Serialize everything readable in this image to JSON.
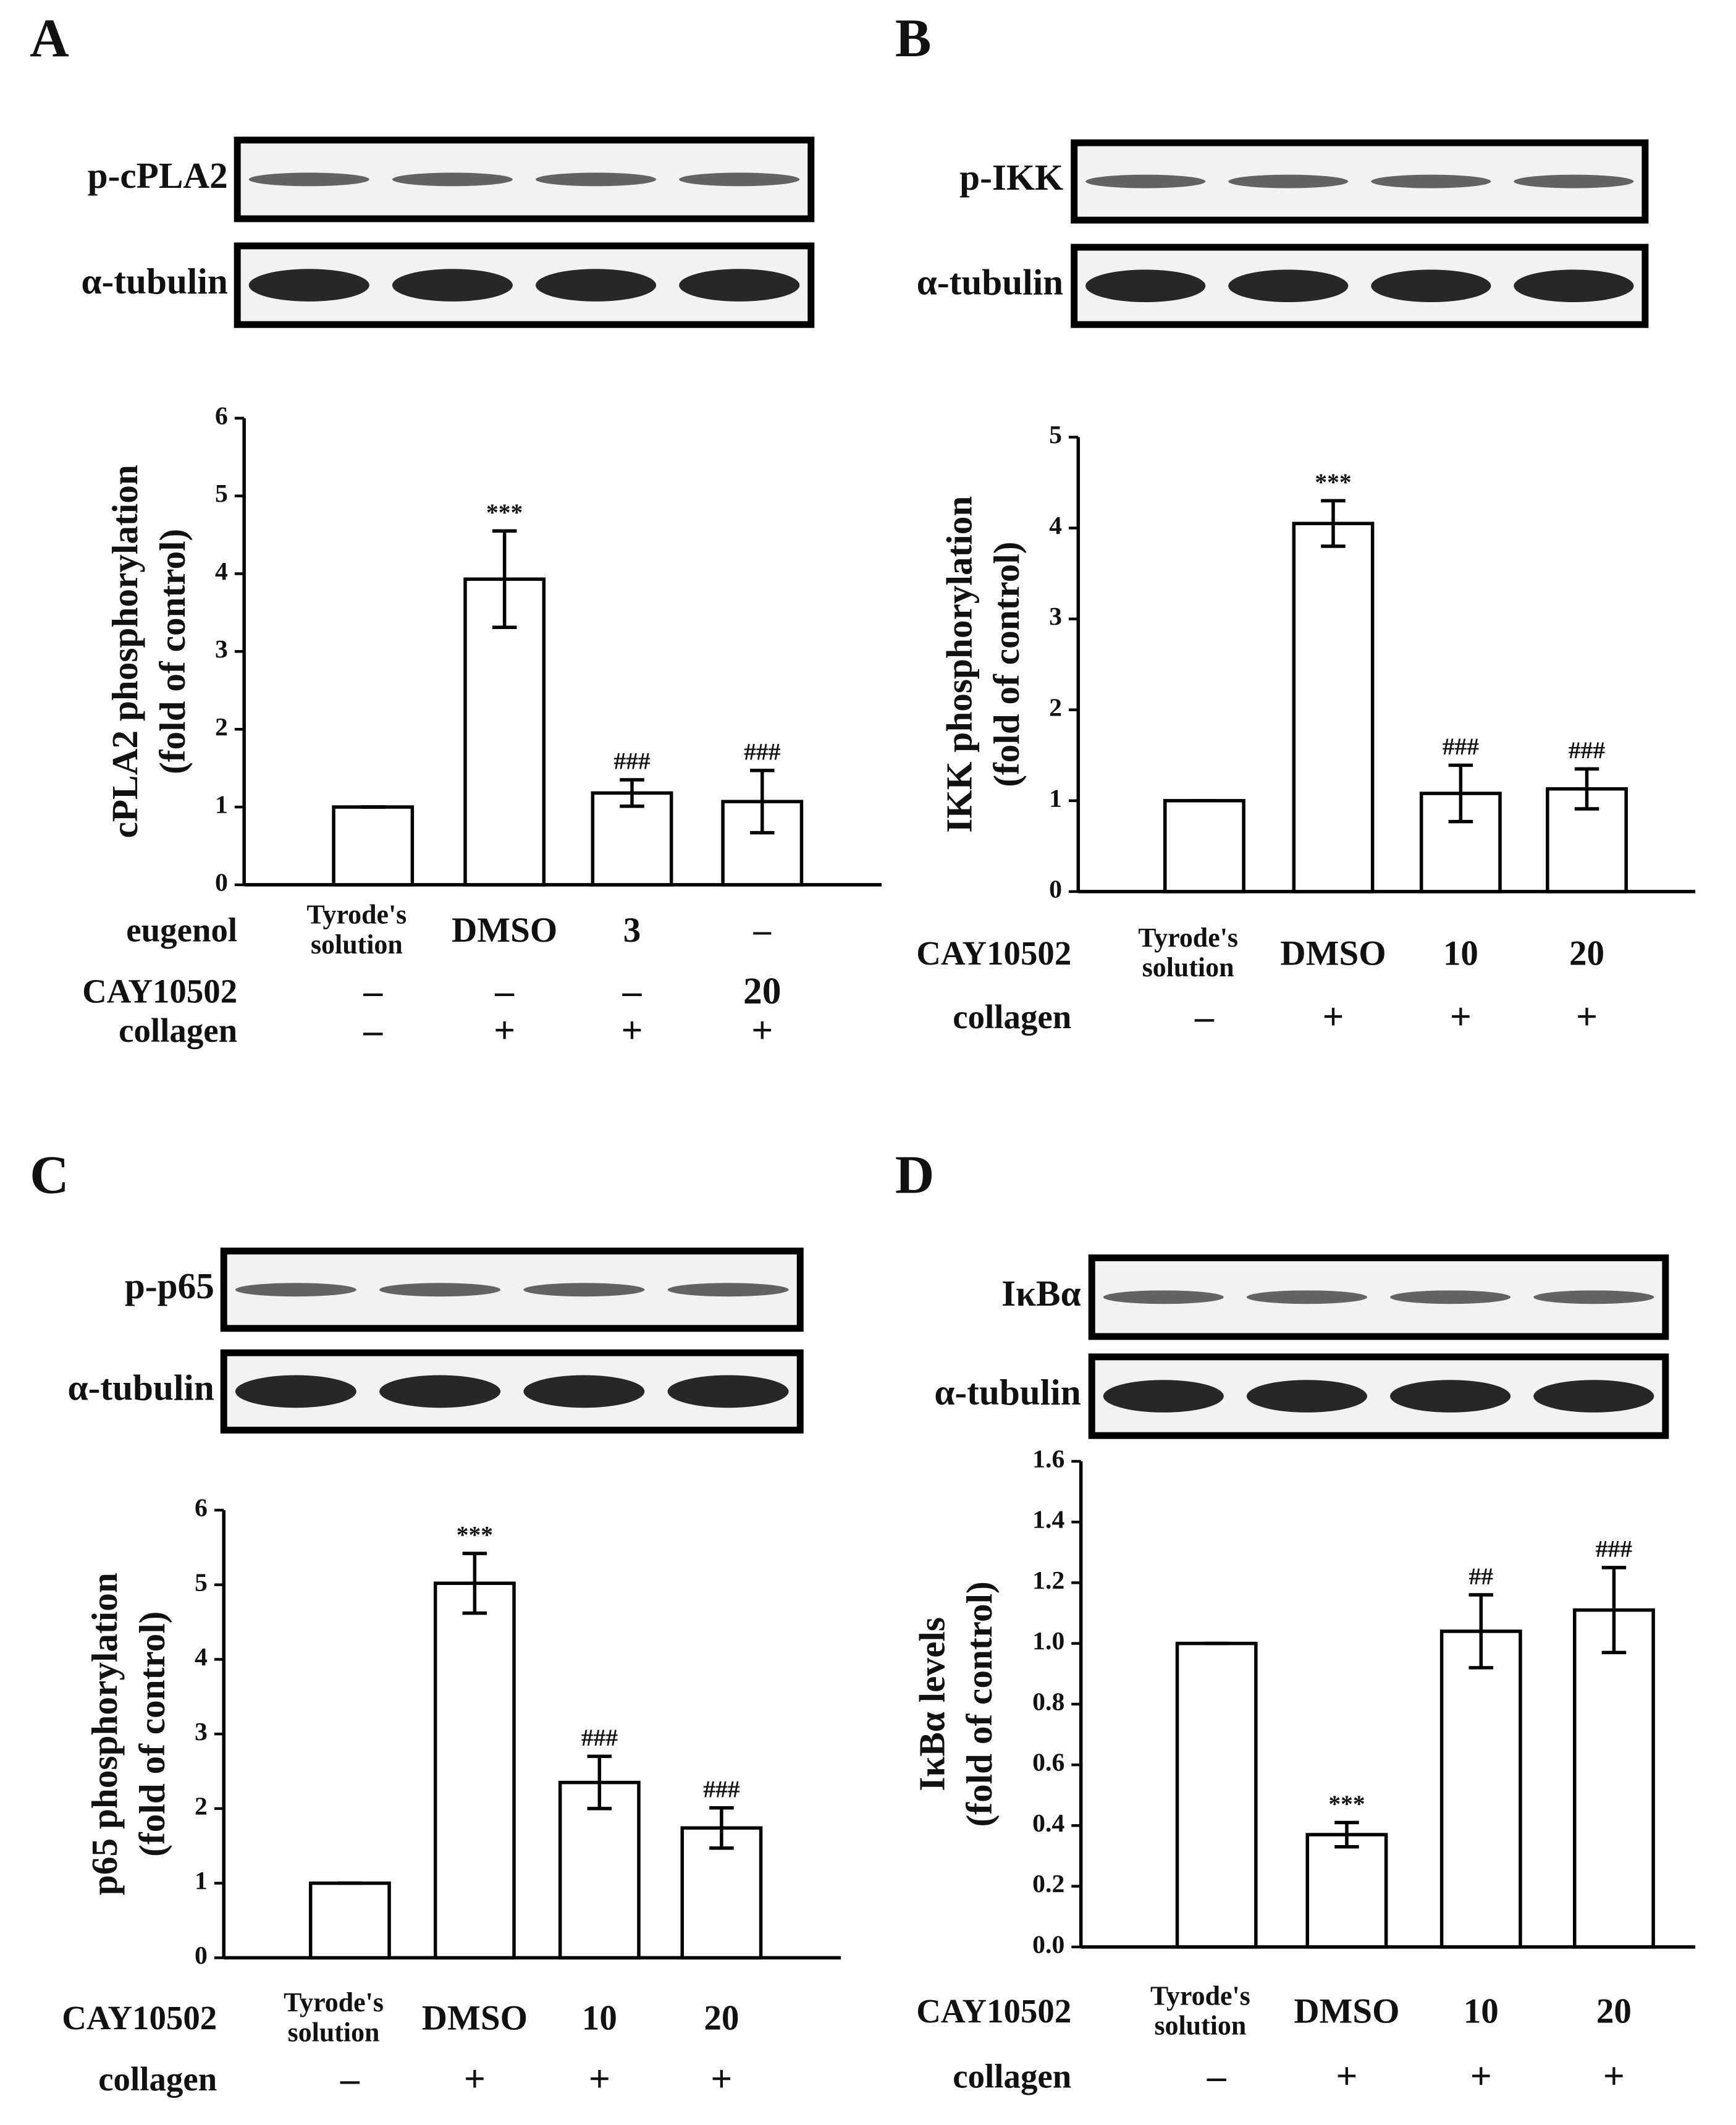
{
  "chart_data": [
    {
      "type": "bar",
      "panel": "A",
      "blots": [
        "p-cPLA2",
        "α-tubulin"
      ],
      "y_label": [
        "cPLA2 phosphorylation",
        "(fold of control)"
      ],
      "category_label": "eugenol",
      "categories": [
        "Tyrode's solution",
        "DMSO",
        "3",
        "–"
      ],
      "treatments": [
        {
          "name": "CAY10502",
          "labels": [
            "–",
            "–",
            "–",
            "20"
          ]
        },
        {
          "name": "collagen",
          "labels": [
            "–",
            "+",
            "+",
            "+"
          ]
        }
      ],
      "values": [
        1,
        3.93,
        1.18,
        1.07
      ],
      "errors": [
        0,
        0.62,
        0.17,
        0.4
      ],
      "annotations": [
        null,
        "***",
        "###",
        "###"
      ],
      "color": "#ffffff",
      "ylim": [
        0,
        6
      ],
      "yticks": [
        0,
        1,
        2,
        3,
        4,
        5,
        6
      ]
    },
    {
      "type": "bar",
      "panel": "B",
      "blots": [
        "p-IKK",
        "α-tubulin"
      ],
      "y_label": [
        "IKK phosphorylation",
        "(fold of control)"
      ],
      "category_label": "CAY10502",
      "categories": [
        "Tyrode's solution",
        "DMSO",
        "10",
        "20"
      ],
      "treatments": [
        {
          "name": "collagen",
          "labels": [
            "–",
            "+",
            "+",
            "+"
          ]
        }
      ],
      "values": [
        1,
        4.05,
        1.08,
        1.13
      ],
      "errors": [
        0,
        0.25,
        0.31,
        0.22
      ],
      "annotations": [
        null,
        "***",
        "###",
        "###"
      ],
      "color": "#ffffff",
      "ylim": [
        0,
        5
      ],
      "yticks": [
        0,
        1,
        2,
        3,
        4,
        5
      ]
    },
    {
      "type": "bar",
      "panel": "C",
      "blots": [
        "p-p65",
        "α-tubulin"
      ],
      "y_label": [
        "p65 phosphorylation",
        "(fold of control)"
      ],
      "category_label": "CAY10502",
      "categories": [
        "Tyrode's solution",
        "DMSO",
        "10",
        "20"
      ],
      "treatments": [
        {
          "name": "collagen",
          "labels": [
            "–",
            "+",
            "+",
            "+"
          ]
        }
      ],
      "values": [
        1,
        5.02,
        2.35,
        1.74
      ],
      "errors": [
        0,
        0.4,
        0.35,
        0.27
      ],
      "annotations": [
        null,
        "***",
        "###",
        "###"
      ],
      "color": "#ffffff",
      "ylim": [
        0,
        6
      ],
      "yticks": [
        0,
        1,
        2,
        3,
        4,
        5,
        6
      ]
    },
    {
      "type": "bar",
      "panel": "D",
      "blots": [
        "IκBα",
        "α-tubulin"
      ],
      "y_label": [
        "IκBα levels",
        "(fold of control)"
      ],
      "category_label": "CAY10502",
      "categories": [
        "Tyrode's solution",
        "DMSO",
        "10",
        "20"
      ],
      "treatments": [
        {
          "name": "collagen",
          "labels": [
            "–",
            "+",
            "+",
            "+"
          ]
        }
      ],
      "values": [
        1,
        0.37,
        1.04,
        1.11
      ],
      "errors": [
        0,
        0.04,
        0.12,
        0.14
      ],
      "annotations": [
        null,
        "***",
        "##",
        "###"
      ],
      "color": "#ffffff",
      "ylim": [
        0,
        1.6
      ],
      "yticks": [
        {
          "value": 0,
          "label": "0.0"
        },
        0.2,
        0.4,
        0.6,
        0.8,
        {
          "value": 1,
          "label": "1.0"
        },
        1.2,
        1.4,
        1.6
      ]
    }
  ]
}
